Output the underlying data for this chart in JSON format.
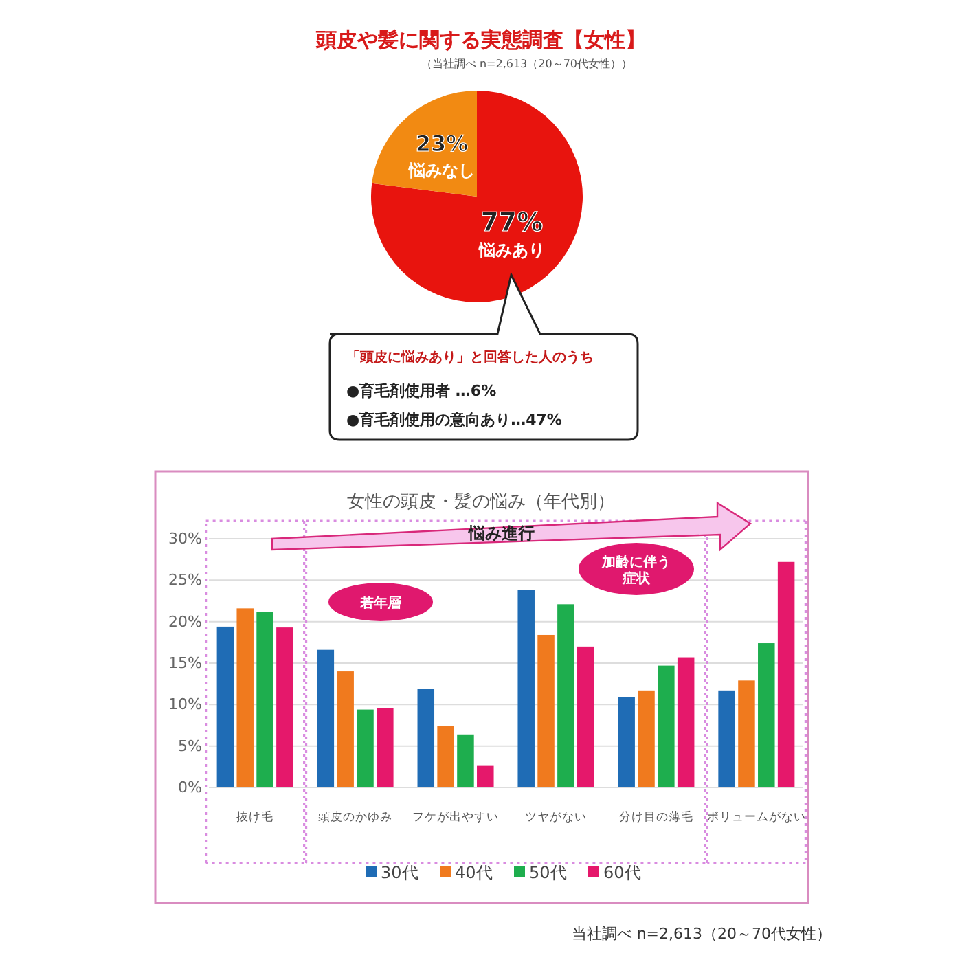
{
  "chart_data": [
    {
      "type": "pie",
      "title": "頭皮や髪に関する実態調査【女性】",
      "subtitle": "（当社調べ n=2,613（20～70代女性））",
      "categories": [
        "悩みあり",
        "悩みなし"
      ],
      "values": [
        77,
        23
      ],
      "colors": [
        "#e8140e",
        "#f28a12"
      ],
      "value_labels": [
        "77%",
        "23%"
      ],
      "annotations": [
        "「頭皮に悩みあり」と回答した人のうち",
        "●育毛剤使用者 …6%",
        "●育毛剤使用の意向あり…47%"
      ]
    },
    {
      "type": "bar",
      "title": "女性の頭皮・髪の悩み（年代別）",
      "categories": [
        "抜け毛",
        "頭皮のかゆみ",
        "フケが出やすい",
        "ツヤがない",
        "分け目の薄毛",
        "ボリュームがない"
      ],
      "series": [
        {
          "name": "30代",
          "color": "#1f6cb5",
          "values": [
            19.4,
            16.6,
            11.9,
            23.8,
            10.9,
            11.7
          ]
        },
        {
          "name": "40代",
          "color": "#f07a1e",
          "values": [
            21.6,
            14.0,
            7.4,
            18.4,
            11.7,
            12.9
          ]
        },
        {
          "name": "50代",
          "color": "#1eae4e",
          "values": [
            21.2,
            9.4,
            6.4,
            22.1,
            14.7,
            17.4
          ]
        },
        {
          "name": "60代",
          "color": "#e5186b",
          "values": [
            19.3,
            9.6,
            2.6,
            17.0,
            15.7,
            27.2
          ]
        }
      ],
      "ylim": [
        0,
        30
      ],
      "yticks": [
        {
          "value": 0,
          "label": "0%"
        },
        {
          "value": 5,
          "label": "5%"
        },
        {
          "value": 10,
          "label": "10%"
        },
        {
          "value": 15,
          "label": "15%"
        },
        {
          "value": 20,
          "label": "20%"
        },
        {
          "value": 25,
          "label": "25%"
        },
        {
          "value": 30,
          "label": "30%"
        }
      ],
      "grid": "y",
      "legend": "bottom",
      "annotations": [
        "悩み進行",
        "若年層",
        "加齢に伴う症状",
        "当社調べ n=2,613（20～70代女性）"
      ]
    }
  ]
}
